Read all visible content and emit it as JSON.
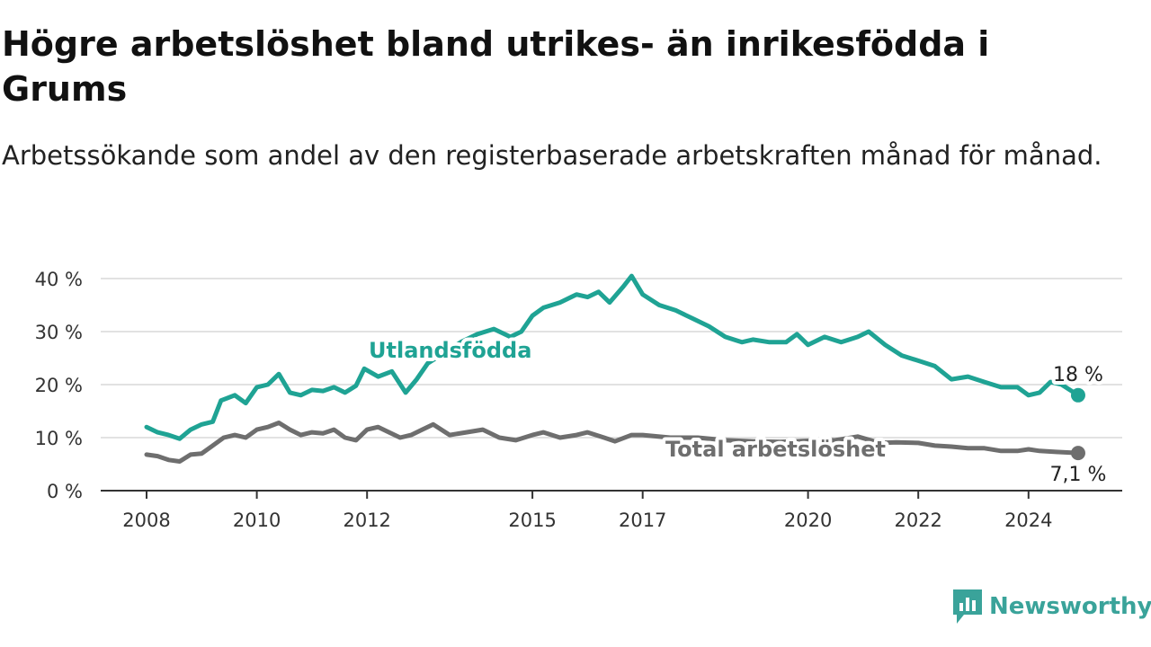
{
  "header": {
    "title": "Högre arbetslöshet bland utrikes- än inrikesfödda i Grums",
    "subtitle": "Arbetssökande som andel av den registerbaserade arbetskraften månad för månad."
  },
  "brand": {
    "name": "Newsworthy",
    "icon": "newsworthy-logo-icon",
    "color": "#3aa39a"
  },
  "chart_data": {
    "type": "line",
    "xlim": [
      2008,
      2025.5
    ],
    "ylim": [
      0,
      40
    ],
    "yticks": [
      0,
      10,
      20,
      30,
      40
    ],
    "ytick_labels": [
      "0 %",
      "10 %",
      "20 %",
      "30 %",
      "40 %"
    ],
    "xticks": [
      2008,
      2010,
      2012,
      2015,
      2017,
      2020,
      2022,
      2024
    ],
    "xtick_labels": [
      "2008",
      "2010",
      "2012",
      "2015",
      "2017",
      "2020",
      "2022",
      "2024"
    ],
    "grid": true,
    "series": [
      {
        "name": "Utlandsfödda",
        "color": "#1fa394",
        "end_label": "18 %",
        "points": [
          [
            2008.0,
            12
          ],
          [
            2008.2,
            11
          ],
          [
            2008.4,
            10.5
          ],
          [
            2008.6,
            9.8
          ],
          [
            2008.8,
            11.5
          ],
          [
            2009.0,
            12.5
          ],
          [
            2009.2,
            13
          ],
          [
            2009.35,
            17
          ],
          [
            2009.6,
            18
          ],
          [
            2009.8,
            16.5
          ],
          [
            2010.0,
            19.5
          ],
          [
            2010.2,
            20
          ],
          [
            2010.4,
            22
          ],
          [
            2010.6,
            18.5
          ],
          [
            2010.8,
            18
          ],
          [
            2011.0,
            19
          ],
          [
            2011.2,
            18.8
          ],
          [
            2011.4,
            19.5
          ],
          [
            2011.6,
            18.5
          ],
          [
            2011.8,
            19.8
          ],
          [
            2011.95,
            23
          ],
          [
            2012.2,
            21.5
          ],
          [
            2012.45,
            22.5
          ],
          [
            2012.7,
            18.5
          ],
          [
            2012.9,
            21
          ],
          [
            2013.1,
            24
          ],
          [
            2013.4,
            26
          ],
          [
            2013.7,
            28
          ],
          [
            2014.0,
            29.5
          ],
          [
            2014.3,
            30.5
          ],
          [
            2014.6,
            29
          ],
          [
            2014.8,
            30
          ],
          [
            2015.0,
            33
          ],
          [
            2015.2,
            34.5
          ],
          [
            2015.5,
            35.5
          ],
          [
            2015.8,
            37
          ],
          [
            2016.0,
            36.5
          ],
          [
            2016.2,
            37.5
          ],
          [
            2016.4,
            35.5
          ],
          [
            2016.65,
            38.5
          ],
          [
            2016.8,
            40.5
          ],
          [
            2017.0,
            37
          ],
          [
            2017.3,
            35
          ],
          [
            2017.6,
            34
          ],
          [
            2017.9,
            32.5
          ],
          [
            2018.2,
            31
          ],
          [
            2018.5,
            29
          ],
          [
            2018.8,
            28
          ],
          [
            2019.0,
            28.5
          ],
          [
            2019.3,
            28
          ],
          [
            2019.6,
            28
          ],
          [
            2019.8,
            29.5
          ],
          [
            2020.0,
            27.5
          ],
          [
            2020.3,
            29
          ],
          [
            2020.6,
            28
          ],
          [
            2020.9,
            29
          ],
          [
            2021.1,
            30
          ],
          [
            2021.4,
            27.5
          ],
          [
            2021.7,
            25.5
          ],
          [
            2022.0,
            24.5
          ],
          [
            2022.3,
            23.5
          ],
          [
            2022.6,
            21
          ],
          [
            2022.9,
            21.5
          ],
          [
            2023.2,
            20.5
          ],
          [
            2023.5,
            19.5
          ],
          [
            2023.8,
            19.5
          ],
          [
            2024.0,
            18
          ],
          [
            2024.2,
            18.5
          ],
          [
            2024.4,
            20.5
          ],
          [
            2024.6,
            20
          ],
          [
            2024.9,
            18
          ]
        ]
      },
      {
        "name": "Total arbetslöshet",
        "color": "#6e6e6e",
        "end_label": "7,1 %",
        "points": [
          [
            2008.0,
            6.8
          ],
          [
            2008.2,
            6.5
          ],
          [
            2008.4,
            5.8
          ],
          [
            2008.6,
            5.5
          ],
          [
            2008.8,
            6.8
          ],
          [
            2009.0,
            7
          ],
          [
            2009.2,
            8.5
          ],
          [
            2009.4,
            10
          ],
          [
            2009.6,
            10.5
          ],
          [
            2009.8,
            10
          ],
          [
            2010.0,
            11.5
          ],
          [
            2010.2,
            12
          ],
          [
            2010.4,
            12.8
          ],
          [
            2010.6,
            11.5
          ],
          [
            2010.8,
            10.5
          ],
          [
            2011.0,
            11
          ],
          [
            2011.2,
            10.8
          ],
          [
            2011.4,
            11.5
          ],
          [
            2011.6,
            10
          ],
          [
            2011.8,
            9.5
          ],
          [
            2012.0,
            11.5
          ],
          [
            2012.2,
            12
          ],
          [
            2012.4,
            11
          ],
          [
            2012.6,
            10
          ],
          [
            2012.8,
            10.5
          ],
          [
            2013.0,
            11.5
          ],
          [
            2013.2,
            12.5
          ],
          [
            2013.5,
            10.5
          ],
          [
            2013.8,
            11
          ],
          [
            2014.1,
            11.5
          ],
          [
            2014.4,
            10
          ],
          [
            2014.7,
            9.5
          ],
          [
            2015.0,
            10.5
          ],
          [
            2015.2,
            11
          ],
          [
            2015.5,
            10
          ],
          [
            2015.8,
            10.5
          ],
          [
            2016.0,
            11
          ],
          [
            2016.3,
            10
          ],
          [
            2016.5,
            9.3
          ],
          [
            2016.8,
            10.5
          ],
          [
            2017.0,
            10.5
          ],
          [
            2017.5,
            10
          ],
          [
            2018.0,
            10
          ],
          [
            2018.5,
            9.5
          ],
          [
            2019.0,
            9.3
          ],
          [
            2019.5,
            9.2
          ],
          [
            2020.0,
            9.4
          ],
          [
            2020.5,
            9.5
          ],
          [
            2020.9,
            10.2
          ],
          [
            2021.3,
            9
          ],
          [
            2021.6,
            9.1
          ],
          [
            2022.0,
            9
          ],
          [
            2022.3,
            8.5
          ],
          [
            2022.6,
            8.3
          ],
          [
            2022.9,
            8
          ],
          [
            2023.2,
            8
          ],
          [
            2023.5,
            7.5
          ],
          [
            2023.8,
            7.5
          ],
          [
            2024.0,
            7.8
          ],
          [
            2024.2,
            7.5
          ],
          [
            2024.5,
            7.3
          ],
          [
            2024.9,
            7.1
          ]
        ]
      }
    ]
  }
}
